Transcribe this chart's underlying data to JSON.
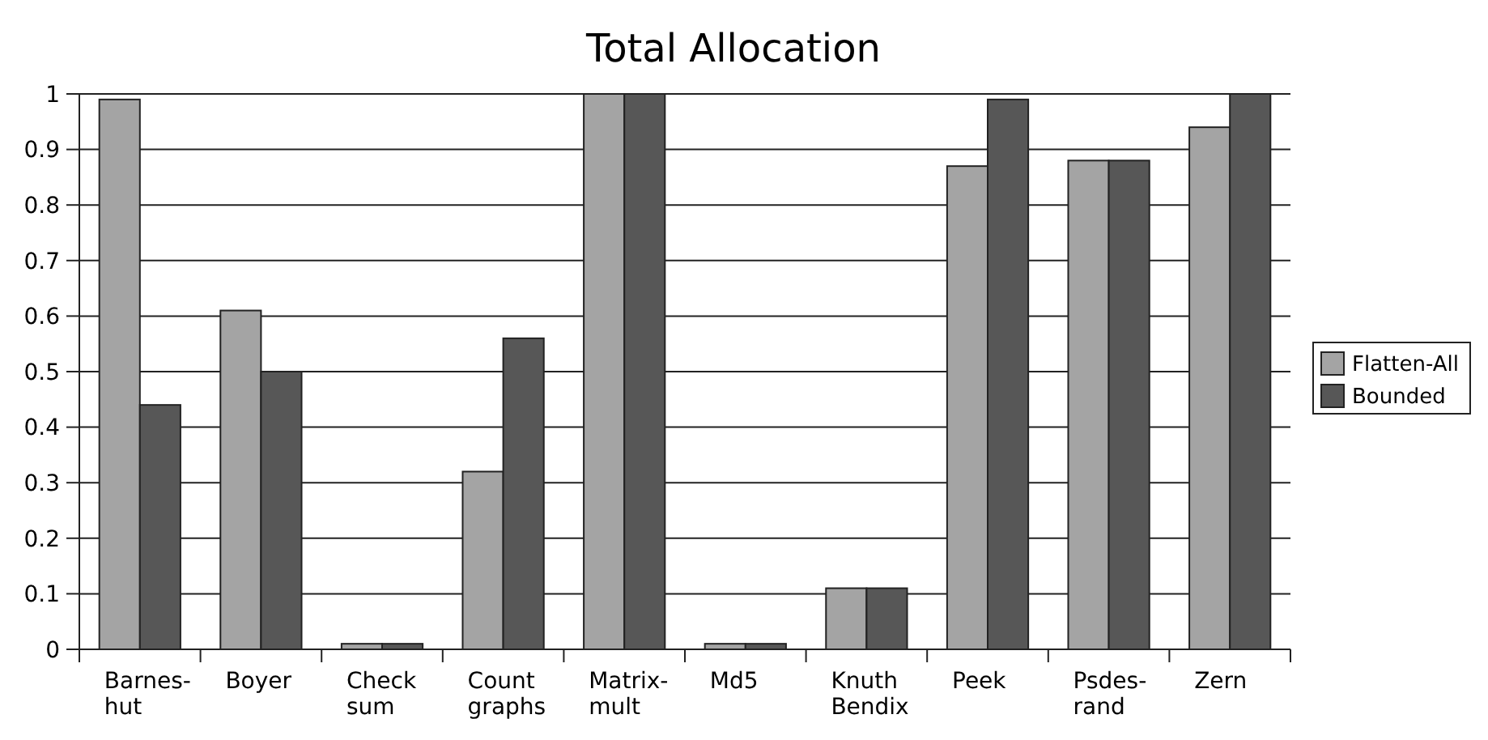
{
  "chart_data": {
    "type": "bar",
    "title": "Total Allocation",
    "categories": [
      "Barnes-\nhut",
      "Boyer",
      "Check\nsum",
      "Count\ngraphs",
      "Matrix-\nmult",
      "Md5",
      "Knuth\nBendix",
      "Peek",
      "Psdes-\nrand",
      "Zern"
    ],
    "series": [
      {
        "name": "Flatten-All",
        "color": "#a4a4a4",
        "values": [
          0.99,
          0.61,
          0.01,
          0.32,
          1,
          0.01,
          0.11,
          0.87,
          0.88,
          0.94
        ]
      },
      {
        "name": "Bounded",
        "color": "#575757",
        "values": [
          0.44,
          0.5,
          0.01,
          0.56,
          1,
          0.01,
          0.11,
          0.99,
          0.88,
          1
        ]
      }
    ],
    "ylim": [
      0,
      1
    ],
    "yticks": [
      0,
      0.1,
      0.2,
      0.3,
      0.4,
      0.5,
      0.6,
      0.7,
      0.8,
      0.9,
      1
    ],
    "grid": "y",
    "legend": "right"
  }
}
